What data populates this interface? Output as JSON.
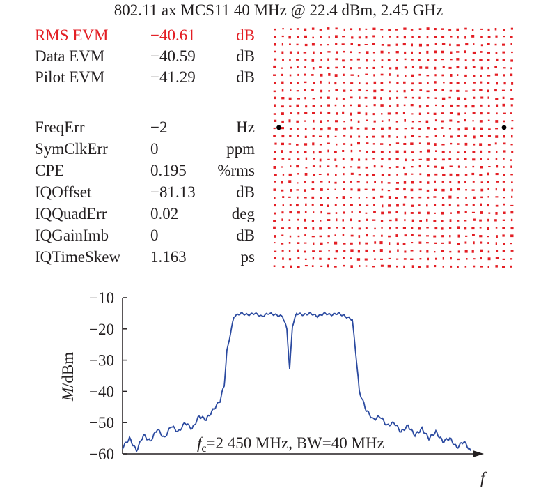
{
  "title": "802.11 ax MCS11 40 MHz @ 22.4 dBm, 2.45 GHz",
  "measurements": [
    {
      "name": "RMS EVM",
      "value": "−40.61",
      "unit": "dB",
      "highlight": true
    },
    {
      "name": "Data EVM",
      "value": "−40.59",
      "unit": "dB",
      "highlight": false
    },
    {
      "name": "Pilot EVM",
      "value": "−41.29",
      "unit": "dB",
      "highlight": false
    },
    {
      "name": "FreqErr",
      "value": "−2",
      "unit": "Hz",
      "highlight": false
    },
    {
      "name": "SymClkErr",
      "value": "0",
      "unit": "ppm",
      "highlight": false
    },
    {
      "name": "CPE",
      "value": "0.195",
      "unit": "%rms",
      "highlight": false
    },
    {
      "name": "IQOffset",
      "value": "−81.13",
      "unit": "dB",
      "highlight": false
    },
    {
      "name": "IQQuadErr",
      "value": "0.02",
      "unit": "deg",
      "highlight": false
    },
    {
      "name": "IQGainImb",
      "value": "0",
      "unit": "dB",
      "highlight": false
    },
    {
      "name": "IQTimeSkew",
      "value": "1.163",
      "unit": "ps",
      "highlight": false
    }
  ],
  "colors": {
    "data_points": "#e31e24",
    "pilot_points": "#000000",
    "trace": "#2b4aa0",
    "highlight": "#e31e24"
  },
  "chart_data": [
    {
      "type": "scatter",
      "name": "constellation",
      "grid_points_per_axis": 32,
      "pilot_points": [
        [
          -30,
          1
        ],
        [
          29,
          1
        ]
      ],
      "colors": {
        "data": "#e31e24",
        "pilot": "#000000"
      }
    },
    {
      "type": "line",
      "ylabel_var": "M",
      "ylabel_unit": "/dBm",
      "xlabel": "f",
      "ylim": [
        -60,
        -10
      ],
      "yticks": [
        "−10",
        "−20",
        "−30",
        "−40",
        "−50",
        "−60"
      ],
      "ytick_values": [
        -10,
        -20,
        -30,
        -40,
        -50,
        -60
      ],
      "annotation": {
        "sym": "f",
        "sub": "c",
        "text": "=2 450 MHz, BW=40 MHz"
      },
      "x": [
        0,
        10,
        20,
        30,
        40,
        50,
        60,
        70,
        80,
        90,
        100,
        110,
        120,
        130,
        140,
        146,
        150,
        160,
        170,
        180,
        190,
        200,
        210,
        220,
        230,
        236,
        240,
        244,
        250,
        260,
        270,
        280,
        290,
        300,
        310,
        320,
        330,
        336,
        340,
        350,
        360,
        370,
        380,
        390,
        400,
        410,
        420,
        430,
        440,
        450,
        460,
        470,
        480,
        490,
        500
      ],
      "y": [
        -58,
        -55,
        -59,
        -54,
        -56,
        -52,
        -55,
        -51,
        -53,
        -50,
        -52,
        -48,
        -49,
        -46,
        -43,
        -38,
        -27,
        -16,
        -15,
        -15.5,
        -15,
        -16,
        -15,
        -15.5,
        -16,
        -20,
        -33,
        -19,
        -15,
        -15.5,
        -15,
        -16,
        -15,
        -15.5,
        -15,
        -16,
        -17,
        -30,
        -40,
        -46,
        -49,
        -48,
        -51,
        -50,
        -53,
        -51,
        -54,
        -52,
        -55,
        -53,
        -56,
        -55,
        -58,
        -56,
        -59
      ],
      "colors": {
        "line": "#2b4aa0"
      }
    }
  ]
}
